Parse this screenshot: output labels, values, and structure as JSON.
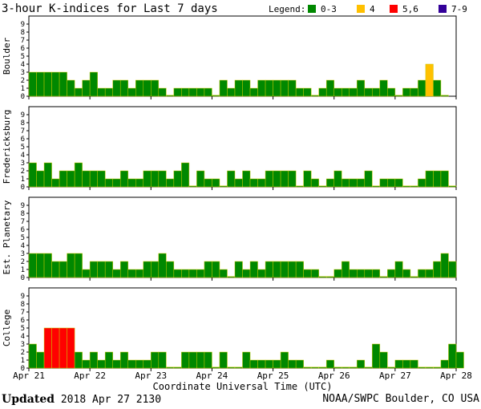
{
  "chart_data": {
    "type": "bar",
    "title": "3-hour K-indices for Last 7 days",
    "legend": {
      "label": "Legend:",
      "placement": "top-right",
      "entries": [
        {
          "label": "0-3",
          "color": "#008800"
        },
        {
          "label": "4",
          "color": "#ffc000"
        },
        {
          "label": "5,6",
          "color": "#ff0000"
        },
        {
          "label": "7-9",
          "color": "#330099"
        }
      ]
    },
    "xlabel": "Coordinate Universal Time (UTC)",
    "x_ticks": [
      "Apr 21",
      "Apr 22",
      "Apr 23",
      "Apr 24",
      "Apr 25",
      "Apr 26",
      "Apr 27",
      "Apr 28"
    ],
    "ylim": [
      0,
      9
    ],
    "y_ticks": [
      0,
      1,
      2,
      3,
      4,
      5,
      6,
      7,
      8,
      9
    ],
    "grid": false,
    "panels": [
      {
        "name": "Boulder",
        "values": [
          3,
          3,
          3,
          3,
          3,
          2,
          1,
          2,
          3,
          1,
          1,
          2,
          2,
          1,
          2,
          2,
          2,
          1,
          0,
          1,
          1,
          1,
          1,
          1,
          0,
          2,
          1,
          2,
          2,
          1,
          2,
          2,
          2,
          2,
          2,
          1,
          1,
          0,
          1,
          2,
          1,
          1,
          1,
          2,
          1,
          1,
          2,
          1,
          0,
          1,
          1,
          2,
          4,
          2,
          0
        ]
      },
      {
        "name": "Fredericksburg",
        "values": [
          3,
          2,
          3,
          1,
          2,
          2,
          3,
          2,
          2,
          2,
          1,
          1,
          2,
          1,
          1,
          2,
          2,
          2,
          1,
          2,
          3,
          0,
          2,
          1,
          1,
          0,
          2,
          1,
          2,
          1,
          1,
          2,
          2,
          2,
          2,
          0,
          2,
          1,
          0,
          1,
          2,
          1,
          1,
          1,
          2,
          0,
          1,
          1,
          1,
          0,
          0,
          1,
          2,
          2,
          2,
          0
        ]
      },
      {
        "name": "Est. Planetary",
        "values": [
          3,
          3,
          3,
          2,
          2,
          3,
          3,
          1,
          2,
          2,
          2,
          1,
          2,
          1,
          1,
          2,
          2,
          3,
          2,
          1,
          1,
          1,
          1,
          2,
          2,
          1,
          0,
          2,
          1,
          2,
          1,
          2,
          2,
          2,
          2,
          2,
          1,
          1,
          0,
          0,
          1,
          2,
          1,
          1,
          1,
          1,
          0,
          1,
          2,
          1,
          0,
          1,
          1,
          2,
          3,
          2
        ]
      },
      {
        "name": "College",
        "values": [
          3,
          2,
          5,
          5,
          5,
          5,
          2,
          1,
          2,
          1,
          2,
          1,
          2,
          1,
          1,
          1,
          2,
          2,
          0,
          0,
          2,
          2,
          2,
          2,
          0,
          2,
          0,
          0,
          2,
          1,
          1,
          1,
          1,
          2,
          1,
          1,
          0,
          0,
          0,
          1,
          0,
          0,
          0,
          1,
          0,
          3,
          2,
          0,
          1,
          1,
          1,
          0,
          0,
          0,
          1,
          3,
          2
        ]
      }
    ]
  },
  "footer": {
    "updated_label": "Updated",
    "updated_value": "2018 Apr 27 2130",
    "source": "NOAA/SWPC Boulder, CO USA"
  }
}
